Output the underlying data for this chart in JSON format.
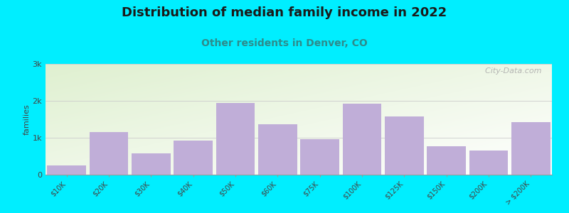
{
  "title": "Distribution of median family income in 2022",
  "subtitle": "Other residents in Denver, CO",
  "title_fontsize": 13,
  "subtitle_fontsize": 10,
  "title_color": "#1a1a1a",
  "subtitle_color": "#2e8b8b",
  "background_color": "#00eeff",
  "plot_bg_top_left": "#dff0d0",
  "plot_bg_bottom_right": "#ffffff",
  "bar_color": "#c0aed8",
  "bar_edgecolor": "none",
  "ylabel": "families",
  "ylim": [
    0,
    3000
  ],
  "yticks": [
    0,
    1000,
    2000,
    3000
  ],
  "ytick_labels": [
    "0",
    "1k",
    "2k",
    "3k"
  ],
  "categories": [
    "$10K",
    "$20K",
    "$30K",
    "$40K",
    "$50K",
    "$60K",
    "$75K",
    "$100K",
    "$125K",
    "$150K",
    "$200K",
    "> $200K"
  ],
  "values": [
    250,
    1150,
    580,
    930,
    1950,
    1370,
    970,
    1920,
    1580,
    770,
    650,
    1430
  ],
  "watermark": "  City-Data.com"
}
